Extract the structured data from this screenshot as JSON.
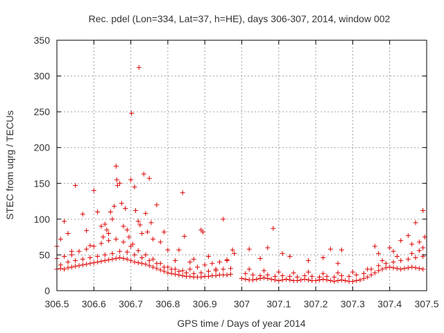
{
  "chart_data": {
    "type": "scatter",
    "title": "Rec. pdel (Lon=334, Lat=37, h=HE), days 306-307, 2014, window 002",
    "xlabel": "GPS time / Days of year 2014",
    "ylabel": "STEC from uqrg / TECUs",
    "xlim": [
      306.5,
      307.5
    ],
    "ylim": [
      0,
      350
    ],
    "xticks": [
      306.5,
      306.6,
      306.7,
      306.8,
      306.9,
      307,
      307.1,
      307.2,
      307.3,
      307.4,
      307.5
    ],
    "xtick_labels": [
      "306.5",
      "306.6",
      "306.7",
      "306.8",
      "306.9",
      "307",
      "307.1",
      "307.2",
      "307.3",
      "307.4",
      "307.5"
    ],
    "yticks": [
      0,
      50,
      100,
      150,
      200,
      250,
      300,
      350
    ],
    "ytick_labels": [
      "0",
      "50",
      "100",
      "150",
      "200",
      "250",
      "300",
      "350"
    ],
    "grid": true,
    "marker": "+",
    "color": "#dd0000",
    "series": [
      {
        "name": "STEC",
        "points": [
          [
            306.5,
            30
          ],
          [
            306.51,
            31
          ],
          [
            306.52,
            30
          ],
          [
            306.53,
            32
          ],
          [
            306.54,
            33
          ],
          [
            306.55,
            34
          ],
          [
            306.56,
            35
          ],
          [
            306.57,
            36
          ],
          [
            306.58,
            37
          ],
          [
            306.59,
            38
          ],
          [
            306.6,
            39
          ],
          [
            306.61,
            40
          ],
          [
            306.62,
            41
          ],
          [
            306.63,
            42
          ],
          [
            306.64,
            43
          ],
          [
            306.65,
            44
          ],
          [
            306.66,
            45
          ],
          [
            306.67,
            46
          ],
          [
            306.68,
            45
          ],
          [
            306.69,
            44
          ],
          [
            306.7,
            42
          ],
          [
            306.71,
            40
          ],
          [
            306.72,
            39
          ],
          [
            306.73,
            38
          ],
          [
            306.74,
            37
          ],
          [
            306.75,
            35
          ],
          [
            306.76,
            33
          ],
          [
            306.77,
            31
          ],
          [
            306.78,
            29
          ],
          [
            306.79,
            27
          ],
          [
            306.8,
            25
          ],
          [
            306.81,
            24
          ],
          [
            306.82,
            23
          ],
          [
            306.83,
            22
          ],
          [
            306.84,
            21
          ],
          [
            306.85,
            20
          ],
          [
            306.86,
            20
          ],
          [
            306.87,
            19
          ],
          [
            306.88,
            19
          ],
          [
            306.89,
            19
          ],
          [
            306.9,
            20
          ],
          [
            306.91,
            20
          ],
          [
            306.92,
            21
          ],
          [
            306.93,
            21
          ],
          [
            306.94,
            22
          ],
          [
            306.95,
            22
          ],
          [
            306.96,
            22
          ],
          [
            306.97,
            23
          ],
          [
            306.51,
            36
          ],
          [
            306.53,
            40
          ],
          [
            306.55,
            42
          ],
          [
            306.57,
            44
          ],
          [
            306.59,
            46
          ],
          [
            306.61,
            48
          ],
          [
            306.63,
            50
          ],
          [
            306.65,
            52
          ],
          [
            306.67,
            55
          ],
          [
            306.69,
            54
          ],
          [
            306.71,
            50
          ],
          [
            306.73,
            46
          ],
          [
            306.75,
            42
          ],
          [
            306.77,
            38
          ],
          [
            306.79,
            33
          ],
          [
            306.81,
            30
          ],
          [
            306.83,
            27
          ],
          [
            306.85,
            25
          ],
          [
            306.87,
            24
          ],
          [
            306.89,
            25
          ],
          [
            306.91,
            27
          ],
          [
            306.93,
            28
          ],
          [
            306.95,
            30
          ],
          [
            306.97,
            31
          ],
          [
            306.5,
            45
          ],
          [
            306.52,
            48
          ],
          [
            306.54,
            50
          ],
          [
            306.56,
            55
          ],
          [
            306.58,
            58
          ],
          [
            306.6,
            62
          ],
          [
            306.62,
            66
          ],
          [
            306.64,
            70
          ],
          [
            306.66,
            72
          ],
          [
            306.68,
            68
          ],
          [
            306.7,
            62
          ],
          [
            306.72,
            56
          ],
          [
            306.74,
            50
          ],
          [
            306.76,
            44
          ],
          [
            306.78,
            38
          ],
          [
            306.8,
            33
          ],
          [
            306.82,
            30
          ],
          [
            306.84,
            28
          ],
          [
            306.86,
            30
          ],
          [
            306.88,
            33
          ],
          [
            306.9,
            36
          ],
          [
            306.92,
            38
          ],
          [
            306.94,
            40
          ],
          [
            306.96,
            42
          ],
          [
            306.5,
            62
          ],
          [
            306.51,
            72
          ],
          [
            306.52,
            97
          ],
          [
            306.53,
            80
          ],
          [
            306.54,
            55
          ],
          [
            306.55,
            147
          ],
          [
            306.57,
            107
          ],
          [
            306.58,
            84
          ],
          [
            306.59,
            63
          ],
          [
            306.6,
            140
          ],
          [
            306.61,
            110
          ],
          [
            306.62,
            90
          ],
          [
            306.625,
            75
          ],
          [
            306.63,
            93
          ],
          [
            306.635,
            85
          ],
          [
            306.64,
            80
          ],
          [
            306.645,
            110
          ],
          [
            306.65,
            100
          ],
          [
            306.655,
            118
          ],
          [
            306.66,
            174
          ],
          [
            306.662,
            155
          ],
          [
            306.664,
            147
          ],
          [
            306.67,
            150
          ],
          [
            306.675,
            122
          ],
          [
            306.68,
            90
          ],
          [
            306.685,
            115
          ],
          [
            306.69,
            85
          ],
          [
            306.695,
            75
          ],
          [
            306.7,
            155
          ],
          [
            306.702,
            248
          ],
          [
            306.705,
            65
          ],
          [
            306.71,
            145
          ],
          [
            306.713,
            112
          ],
          [
            306.72,
            97
          ],
          [
            306.722,
            312
          ],
          [
            306.725,
            92
          ],
          [
            306.73,
            80
          ],
          [
            306.735,
            163
          ],
          [
            306.74,
            108
          ],
          [
            306.745,
            82
          ],
          [
            306.75,
            157
          ],
          [
            306.755,
            95
          ],
          [
            306.76,
            72
          ],
          [
            306.77,
            120
          ],
          [
            306.78,
            68
          ],
          [
            306.79,
            82
          ],
          [
            306.8,
            57
          ],
          [
            306.82,
            42
          ],
          [
            306.83,
            57
          ],
          [
            306.84,
            137
          ],
          [
            306.845,
            76
          ],
          [
            306.86,
            40
          ],
          [
            306.87,
            44
          ],
          [
            306.89,
            85
          ],
          [
            306.895,
            82
          ],
          [
            306.91,
            48
          ],
          [
            306.93,
            30
          ],
          [
            306.95,
            100
          ],
          [
            306.96,
            43
          ],
          [
            306.975,
            57
          ],
          [
            306.98,
            52
          ],
          [
            307.0,
            17
          ],
          [
            307.01,
            16
          ],
          [
            307.02,
            15
          ],
          [
            307.03,
            15
          ],
          [
            307.04,
            16
          ],
          [
            307.05,
            17
          ],
          [
            307.06,
            18
          ],
          [
            307.07,
            17
          ],
          [
            307.08,
            16
          ],
          [
            307.09,
            15
          ],
          [
            307.1,
            14
          ],
          [
            307.11,
            15
          ],
          [
            307.12,
            16
          ],
          [
            307.13,
            15
          ],
          [
            307.14,
            14
          ],
          [
            307.15,
            14
          ],
          [
            307.16,
            15
          ],
          [
            307.17,
            16
          ],
          [
            307.18,
            15
          ],
          [
            307.19,
            14
          ],
          [
            307.2,
            14
          ],
          [
            307.21,
            15
          ],
          [
            307.22,
            16
          ],
          [
            307.23,
            15
          ],
          [
            307.24,
            14
          ],
          [
            307.25,
            13
          ],
          [
            307.26,
            14
          ],
          [
            307.27,
            15
          ],
          [
            307.28,
            14
          ],
          [
            307.29,
            13
          ],
          [
            307.3,
            13
          ],
          [
            307.31,
            14
          ],
          [
            307.32,
            15
          ],
          [
            307.33,
            17
          ],
          [
            307.34,
            19
          ],
          [
            307.35,
            22
          ],
          [
            307.36,
            25
          ],
          [
            307.37,
            28
          ],
          [
            307.38,
            30
          ],
          [
            307.39,
            32
          ],
          [
            307.4,
            33
          ],
          [
            307.41,
            32
          ],
          [
            307.42,
            31
          ],
          [
            307.43,
            30
          ],
          [
            307.44,
            31
          ],
          [
            307.45,
            32
          ],
          [
            307.46,
            33
          ],
          [
            307.47,
            32
          ],
          [
            307.48,
            31
          ],
          [
            307.49,
            30
          ],
          [
            307.01,
            24
          ],
          [
            307.03,
            22
          ],
          [
            307.05,
            21
          ],
          [
            307.07,
            22
          ],
          [
            307.09,
            20
          ],
          [
            307.11,
            21
          ],
          [
            307.13,
            20
          ],
          [
            307.15,
            19
          ],
          [
            307.17,
            21
          ],
          [
            307.19,
            20
          ],
          [
            307.21,
            19
          ],
          [
            307.23,
            20
          ],
          [
            307.25,
            19
          ],
          [
            307.27,
            21
          ],
          [
            307.29,
            20
          ],
          [
            307.31,
            22
          ],
          [
            307.33,
            24
          ],
          [
            307.35,
            30
          ],
          [
            307.37,
            35
          ],
          [
            307.39,
            38
          ],
          [
            307.41,
            40
          ],
          [
            307.43,
            42
          ],
          [
            307.45,
            44
          ],
          [
            307.47,
            46
          ],
          [
            307.49,
            48
          ],
          [
            307.02,
            30
          ],
          [
            307.06,
            28
          ],
          [
            307.1,
            26
          ],
          [
            307.14,
            25
          ],
          [
            307.18,
            26
          ],
          [
            307.22,
            24
          ],
          [
            307.26,
            25
          ],
          [
            307.3,
            26
          ],
          [
            307.34,
            30
          ],
          [
            307.38,
            42
          ],
          [
            307.42,
            48
          ],
          [
            307.46,
            52
          ],
          [
            307.48,
            56
          ],
          [
            307.49,
            60
          ],
          [
            307.02,
            58
          ],
          [
            307.05,
            45
          ],
          [
            307.07,
            60
          ],
          [
            307.085,
            87
          ],
          [
            307.11,
            52
          ],
          [
            307.13,
            48
          ],
          [
            307.18,
            42
          ],
          [
            307.22,
            46
          ],
          [
            307.24,
            58
          ],
          [
            307.26,
            38
          ],
          [
            307.27,
            57
          ],
          [
            307.36,
            62
          ],
          [
            307.37,
            52
          ],
          [
            307.4,
            60
          ],
          [
            307.41,
            55
          ],
          [
            307.43,
            70
          ],
          [
            307.45,
            77
          ],
          [
            307.46,
            65
          ],
          [
            307.47,
            95
          ],
          [
            307.48,
            68
          ],
          [
            307.49,
            112
          ],
          [
            307.495,
            75
          ]
        ]
      }
    ]
  }
}
